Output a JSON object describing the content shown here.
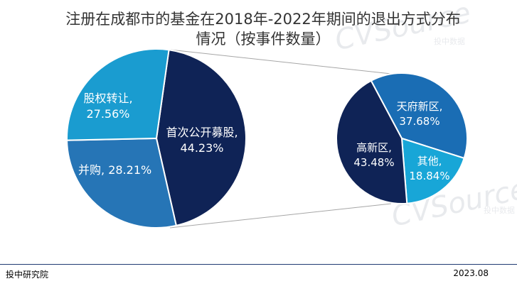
{
  "chart_data": {
    "type": "pie-of-pie",
    "title_lines": [
      "注册在成都市的基金在2018年-2022年期间的退出方式分布",
      "情况（按事件数量）"
    ],
    "main_pie": {
      "slices": [
        {
          "name": "首次公开募股",
          "value": 44.23,
          "label": "44.23%",
          "color": "#0f2356"
        },
        {
          "name": "并购",
          "value": 28.21,
          "label": "28.21%",
          "color": "#2675b6"
        },
        {
          "name": "股权转让",
          "value": 27.56,
          "label": "27.56%",
          "color": "#1a9cd0"
        }
      ]
    },
    "secondary_pie": {
      "slices": [
        {
          "name": "天府新区",
          "value": 37.68,
          "label": "37.68%",
          "color": "#1a6db4"
        },
        {
          "name": "其他",
          "value": 18.84,
          "label": "18.84%",
          "color": "#18a6d7"
        },
        {
          "name": "高新区",
          "value": 43.48,
          "label": "43.48%",
          "color": "#0f2356"
        }
      ]
    }
  },
  "footer": {
    "source": "投中研究院",
    "date": "2023.08"
  },
  "watermark": {
    "brand": "CVSource",
    "sub": "投中数据"
  }
}
